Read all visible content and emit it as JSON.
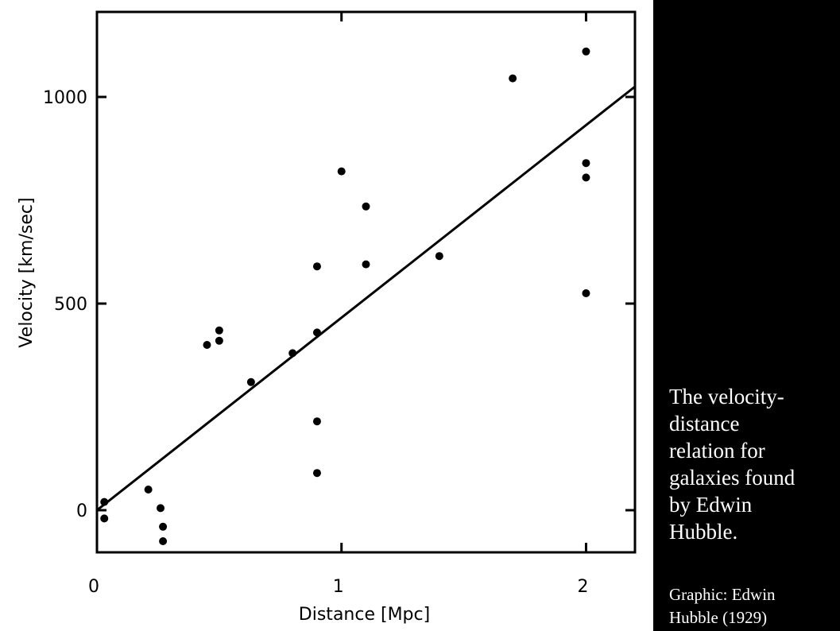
{
  "chart_data": {
    "type": "scatter",
    "title": "",
    "xlabel": "Distance [Mpc]",
    "ylabel": "Velocity [km/sec]",
    "xlim": [
      0,
      2.2
    ],
    "ylim": [
      -100,
      1200
    ],
    "x_ticks": [
      0,
      1,
      2
    ],
    "x_tick_labels": [
      "0",
      "1",
      "2"
    ],
    "y_ticks": [
      0,
      500,
      1000
    ],
    "y_tick_labels": [
      "0",
      "500",
      "1000"
    ],
    "grid": false,
    "legend": "none",
    "points": [
      {
        "x": 0.03,
        "y": 20
      },
      {
        "x": 0.03,
        "y": -20
      },
      {
        "x": 0.21,
        "y": 50
      },
      {
        "x": 0.26,
        "y": 5
      },
      {
        "x": 0.27,
        "y": -40
      },
      {
        "x": 0.27,
        "y": -75
      },
      {
        "x": 0.45,
        "y": 400
      },
      {
        "x": 0.5,
        "y": 435
      },
      {
        "x": 0.5,
        "y": 410
      },
      {
        "x": 0.63,
        "y": 310
      },
      {
        "x": 0.8,
        "y": 380
      },
      {
        "x": 0.9,
        "y": 590
      },
      {
        "x": 0.9,
        "y": 430
      },
      {
        "x": 0.9,
        "y": 215
      },
      {
        "x": 0.9,
        "y": 90
      },
      {
        "x": 1.0,
        "y": 820
      },
      {
        "x": 1.1,
        "y": 735
      },
      {
        "x": 1.1,
        "y": 595
      },
      {
        "x": 1.4,
        "y": 615
      },
      {
        "x": 1.7,
        "y": 1045
      },
      {
        "x": 2.0,
        "y": 1110
      },
      {
        "x": 2.0,
        "y": 840
      },
      {
        "x": 2.0,
        "y": 805
      },
      {
        "x": 2.0,
        "y": 525
      }
    ],
    "fit_line": {
      "x": [
        0,
        2.2
      ],
      "y": [
        0,
        1025
      ]
    },
    "colors": {
      "point": "#000000",
      "line": "#000000",
      "axes": "#000000"
    }
  },
  "panel": {
    "caption": "The velocity-\ndistance\nrelation for\ngalaxies   found\nby Edwin\nHubble.",
    "credit": "Graphic: Edwin\nHubble (1929)",
    "background": "#000000",
    "text_color": "#ffffff"
  }
}
